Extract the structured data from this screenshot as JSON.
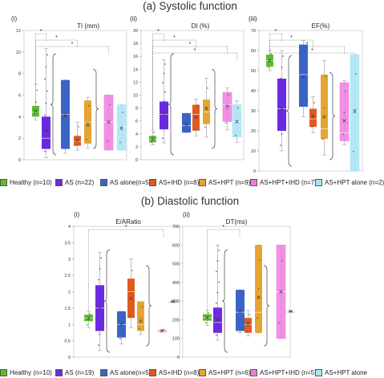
{
  "sections": [
    {
      "title": "(a) Systolic function"
    },
    {
      "title": "(b) Diastolic function"
    }
  ],
  "panel_labels": [
    "(i)",
    "(ii)",
    "(iii)",
    "(i)",
    "(ii)"
  ],
  "legend_a": [
    {
      "label": "Healthy (n=10)",
      "color": "#5cbf2a"
    },
    {
      "label": "AS (n=22)",
      "color": "#6a2be0"
    },
    {
      "label": "AS alone(n=5)",
      "color": "#3a63c8"
    },
    {
      "label": "AS+IHD (n=8)",
      "color": "#e05a1e"
    },
    {
      "label": "AS+HPT (n=9)",
      "color": "#e6a530"
    },
    {
      "label": "AS+HPT+IHD (n=7)",
      "color": "#f07ce0"
    },
    {
      "label": "AS+HPT alone (n=2)",
      "color": "#a8e4f4"
    }
  ],
  "legend_b": [
    {
      "label": "Healthy (n=10)",
      "color": "#5cbf2a"
    },
    {
      "label": "AS (n=19)",
      "color": "#6a2be0"
    },
    {
      "label": "AS alone(n=5)",
      "color": "#3a63c8"
    },
    {
      "label": "AS+IHD (n=8)",
      "color": "#e05a1e"
    },
    {
      "label": "AS+HPT (n=6)",
      "color": "#e6a530"
    },
    {
      "label": "AS+HPT+IHD (n=5)",
      "color": "#f07ce0"
    },
    {
      "label": "AS+HPT alone",
      "color": "#a8e4f4"
    }
  ],
  "chart_data": [
    {
      "type": "box",
      "title": "TI (mm)",
      "ylim": [
        0,
        12
      ],
      "yticks": [
        0,
        2,
        4,
        6,
        8,
        10,
        12
      ],
      "significance": [
        "*",
        "*",
        "*"
      ],
      "boxes": [
        {
          "group": "Healthy",
          "color": "#5cbf2a",
          "min": 3.7,
          "q1": 4.0,
          "median": 4.4,
          "q3": 5.0,
          "max": 7.0,
          "mean": 4.5
        },
        {
          "group": "AS",
          "color": "#6a2be0",
          "min": 0.2,
          "q1": 1.0,
          "median": 2.0,
          "q3": 4.0,
          "max": 10.3,
          "mean": 2.7
        },
        {
          "group": "AS alone",
          "color": "#3a63c8",
          "min": 0.6,
          "q1": 1.0,
          "median": 4.2,
          "q3": 7.4,
          "max": 7.4,
          "mean": 4.1
        },
        {
          "group": "AS+IHD",
          "color": "#e05a1e",
          "min": 0.9,
          "q1": 1.3,
          "median": 1.7,
          "q3": 2.2,
          "max": 3.5,
          "mean": 1.8
        },
        {
          "group": "AS+HPT",
          "color": "#e6a530",
          "min": 1.1,
          "q1": 1.5,
          "median": 3.5,
          "q3": 5.5,
          "max": 5.8,
          "mean": 3.2
        },
        {
          "group": "AS+HPT+IHD",
          "color": "#f07ce0",
          "min": 0.9,
          "q1": 0.9,
          "median": 3.5,
          "q3": 6.0,
          "max": 6.0,
          "mean": 3.5
        },
        {
          "group": "AS+HPT alone",
          "color": "#a8e4f4",
          "min": 0.9,
          "q1": 0.9,
          "median": 3.0,
          "q3": 5.1,
          "max": 5.1,
          "mean": 2.9
        }
      ]
    },
    {
      "type": "box",
      "title": "DI (%)",
      "ylim": [
        0,
        20
      ],
      "yticks": [
        0,
        2,
        4,
        6,
        8,
        10,
        12,
        14,
        16,
        18,
        20
      ],
      "significance": [
        "*",
        "*",
        "*",
        "*"
      ],
      "boxes": [
        {
          "group": "Healthy",
          "color": "#5cbf2a",
          "min": 2.3,
          "q1": 2.7,
          "median": 3.1,
          "q3": 3.7,
          "max": 4.6,
          "mean": 3.1
        },
        {
          "group": "AS",
          "color": "#6a2be0",
          "min": 2.6,
          "q1": 4.7,
          "median": 7.0,
          "q3": 9.0,
          "max": 15.5,
          "mean": 7.2
        },
        {
          "group": "AS alone",
          "color": "#3a63c8",
          "min": 4.2,
          "q1": 4.2,
          "median": 5.3,
          "q3": 7.2,
          "max": 7.2,
          "mean": 5.4
        },
        {
          "group": "AS+IHD",
          "color": "#e05a1e",
          "min": 3.7,
          "q1": 4.5,
          "median": 7.0,
          "q3": 8.5,
          "max": 9.4,
          "mean": 6.6
        },
        {
          "group": "AS+HPT",
          "color": "#e6a530",
          "min": 3.5,
          "q1": 5.5,
          "median": 7.4,
          "q3": 9.3,
          "max": 12.6,
          "mean": 7.9
        },
        {
          "group": "AS+HPT+IHD",
          "color": "#f07ce0",
          "min": 4.6,
          "q1": 5.9,
          "median": 8.5,
          "q3": 10.4,
          "max": 11.1,
          "mean": 8.3
        },
        {
          "group": "AS+HPT alone",
          "color": "#a8e4f4",
          "min": 2.7,
          "q1": 3.5,
          "median": 5.9,
          "q3": 8.5,
          "max": 9.1,
          "mean": 5.9
        }
      ]
    },
    {
      "type": "box",
      "title": "EF(%)",
      "ylim": [
        0,
        70
      ],
      "yticks": [
        0,
        10,
        20,
        30,
        40,
        50,
        60,
        70
      ],
      "significance": [
        "*",
        "*",
        "*",
        "*"
      ],
      "boxes": [
        {
          "group": "Healthy",
          "color": "#5cbf2a",
          "min": 50.0,
          "q1": 52.0,
          "median": 55.0,
          "q3": 58.0,
          "max": 60.0,
          "mean": 55.0
        },
        {
          "group": "AS",
          "color": "#6a2be0",
          "min": 10.0,
          "q1": 20.0,
          "median": 31.0,
          "q3": 46.0,
          "max": 60.0,
          "mean": 31.0
        },
        {
          "group": "AS alone",
          "color": "#3a63c8",
          "min": 27.0,
          "q1": 32.0,
          "median": 48.0,
          "q3": 63.0,
          "max": 65.0,
          "mean": 47.0
        },
        {
          "group": "AS+IHD",
          "color": "#e05a1e",
          "min": 19.0,
          "q1": 22.0,
          "median": 26.0,
          "q3": 31.0,
          "max": 37.0,
          "mean": 27.0
        },
        {
          "group": "AS+HPT",
          "color": "#e6a530",
          "min": 8.0,
          "q1": 16.0,
          "median": 21.0,
          "q3": 48.0,
          "max": 55.0,
          "mean": 27.0
        },
        {
          "group": "AS+HPT+IHD",
          "color": "#f07ce0",
          "min": 13.0,
          "q1": 15.0,
          "median": 19.0,
          "q3": 44.0,
          "max": 45.0,
          "mean": 25.0
        },
        {
          "group": "AS+HPT alone",
          "color": "#a8e4f4",
          "min": 0.0,
          "q1": 0.0,
          "median": 30.0,
          "q3": 58.0,
          "max": 58.0,
          "mean": 30.0
        }
      ]
    },
    {
      "type": "box",
      "title": "E/ARatio",
      "ylim": [
        0,
        4
      ],
      "yticks": [
        0,
        0.5,
        1,
        1.5,
        2,
        2.5,
        3,
        3.5,
        4
      ],
      "significance": [
        "*"
      ],
      "boxes": [
        {
          "group": "Healthy",
          "color": "#5cbf2a",
          "min": 0.9,
          "q1": 1.1,
          "median": 1.2,
          "q3": 1.3,
          "max": 1.4,
          "mean": 1.2
        },
        {
          "group": "AS",
          "color": "#6a2be0",
          "min": 0.2,
          "q1": 0.8,
          "median": 1.5,
          "q3": 2.2,
          "max": 3.2,
          "mean": 1.5
        },
        {
          "group": "AS alone",
          "color": "#3a63c8",
          "min": 0.4,
          "q1": 0.6,
          "median": 1.0,
          "q3": 1.4,
          "max": 1.4,
          "mean": 1.0
        },
        {
          "group": "AS+IHD",
          "color": "#e05a1e",
          "min": 0.9,
          "q1": 1.2,
          "median": 2.0,
          "q3": 2.4,
          "max": 3.0,
          "mean": 1.8
        },
        {
          "group": "AS+HPT",
          "color": "#e6a530",
          "min": 0.7,
          "q1": 0.8,
          "median": 1.0,
          "q3": 1.7,
          "max": 1.7,
          "mean": 1.1
        },
        {
          "group": "AS+HPT+IHD",
          "color": "#f07ce0",
          "min": 0.78,
          "q1": 0.78,
          "median": 0.8,
          "q3": 0.82,
          "max": 0.85,
          "mean": 0.8
        },
        {
          "group": "AS+HPT alone",
          "color": "#a8e4f4",
          "min": 1.7,
          "q1": 1.7,
          "median": 1.7,
          "q3": 1.7,
          "max": 1.7,
          "mean": 1.7
        }
      ]
    },
    {
      "type": "box",
      "title": "DT(ms)",
      "ylim": [
        0,
        700
      ],
      "yticks": [
        0,
        100,
        200,
        300,
        400,
        500,
        600,
        700
      ],
      "significance": [
        "*"
      ],
      "boxes": [
        {
          "group": "Healthy",
          "color": "#5cbf2a",
          "min": 170,
          "q1": 195,
          "median": 210,
          "q3": 230,
          "max": 250,
          "mean": 212
        },
        {
          "group": "AS",
          "color": "#6a2be0",
          "min": 90,
          "q1": 130,
          "median": 185,
          "q3": 265,
          "max": 600,
          "mean": 200
        },
        {
          "group": "AS alone",
          "color": "#3a63c8",
          "min": 130,
          "q1": 140,
          "median": 240,
          "q3": 360,
          "max": 360,
          "mean": 245
        },
        {
          "group": "AS+IHD",
          "color": "#e05a1e",
          "min": 115,
          "q1": 130,
          "median": 175,
          "q3": 210,
          "max": 250,
          "mean": 180
        },
        {
          "group": "AS+HPT",
          "color": "#e6a530",
          "min": 130,
          "q1": 130,
          "median": 240,
          "q3": 600,
          "max": 600,
          "mean": 320
        },
        {
          "group": "AS+HPT+IHD",
          "color": "#f07ce0",
          "min": 100,
          "q1": 100,
          "median": 350,
          "q3": 600,
          "max": 600,
          "mean": 350
        },
        {
          "group": "AS+HPT alone",
          "color": "#a8e4f4",
          "min": 245,
          "q1": 245,
          "median": 245,
          "q3": 245,
          "max": 245,
          "mean": 245
        }
      ]
    }
  ]
}
